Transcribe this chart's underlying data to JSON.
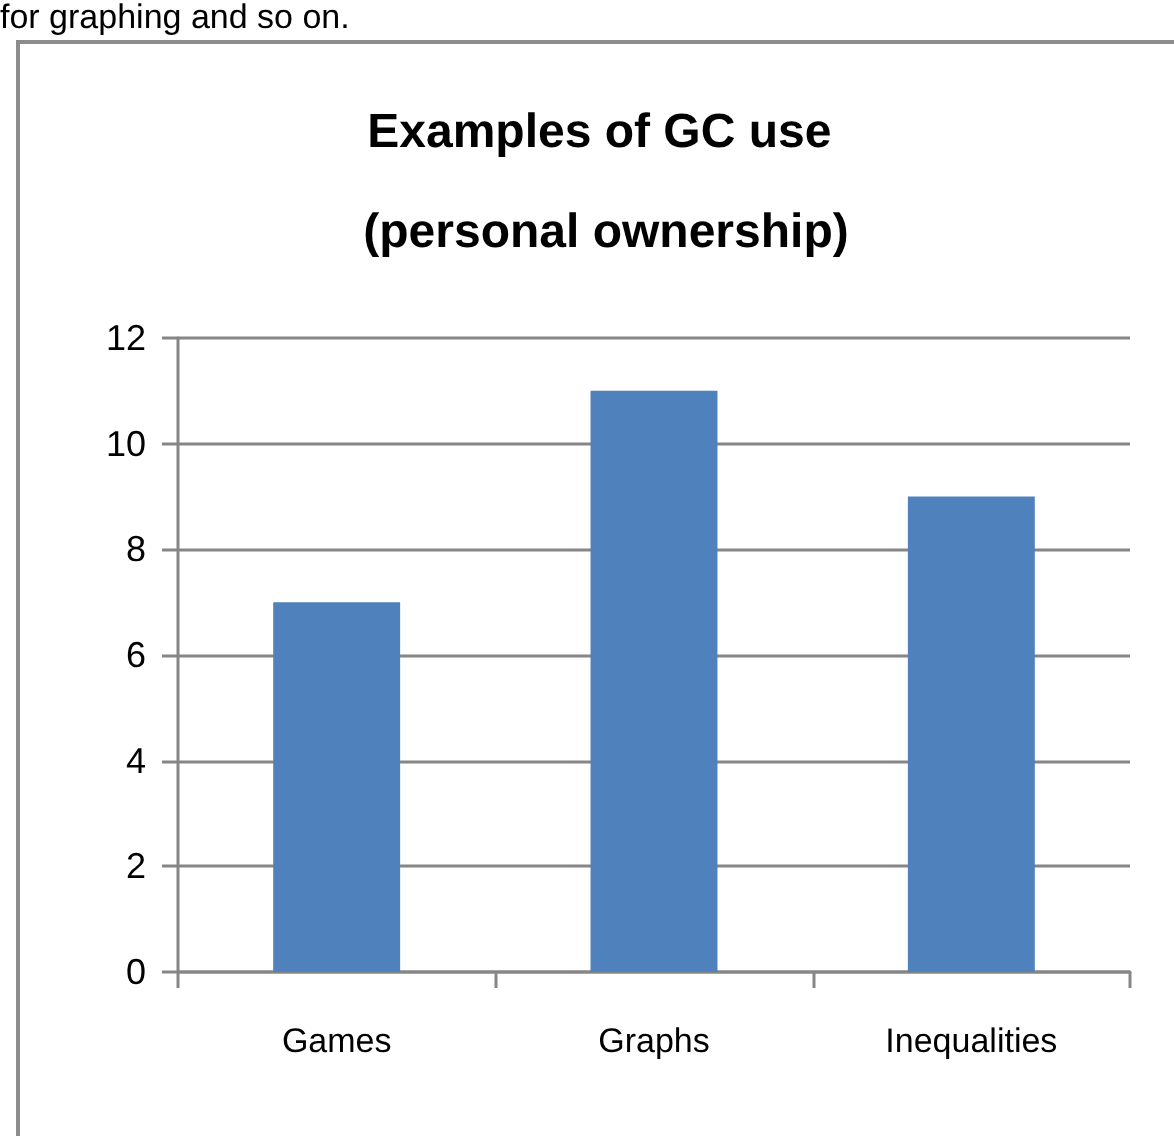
{
  "chart_data": {
    "type": "bar",
    "title": "Examples of GC use (personal ownership)",
    "annotations": [
      "for graphing and so on."
    ],
    "categories": [
      "Games",
      "Graphs",
      "Inequalities"
    ],
    "values": [
      7,
      11,
      9
    ],
    "color": "#4f81bd",
    "ylim": [
      0,
      12
    ],
    "yticks": [
      0,
      2,
      4,
      6,
      8,
      10,
      12
    ],
    "grid": "y"
  }
}
